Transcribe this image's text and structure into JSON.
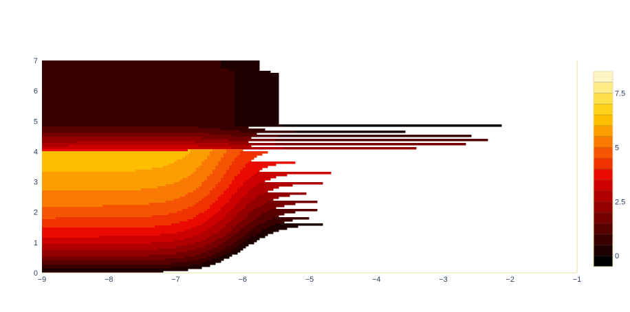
{
  "chart_data": {
    "type": "contour",
    "title": "",
    "xlabel": "",
    "ylabel": "",
    "xlim": [
      -9,
      -1
    ],
    "ylim": [
      0,
      7
    ],
    "x_ticks": [
      -9,
      -8,
      -7,
      -6,
      -5,
      -4,
      -3,
      -2,
      -1
    ],
    "x_tick_labels": [
      "−9",
      "−8",
      "−7",
      "−6",
      "−5",
      "−4",
      "−3",
      "−2",
      "−1"
    ],
    "y_ticks": [
      0,
      1,
      2,
      3,
      4,
      5,
      6,
      7
    ],
    "y_tick_labels": [
      "0",
      "1",
      "2",
      "3",
      "4",
      "5",
      "6",
      "7"
    ],
    "colorscale": "hot",
    "colorbar": {
      "range": [
        -0.5,
        8.5
      ],
      "levels": [
        -0.5,
        0,
        0.5,
        1,
        1.5,
        2,
        2.5,
        3,
        3.5,
        4,
        4.5,
        5,
        5.5,
        6,
        6.5,
        7,
        7.5,
        8,
        8.5
      ],
      "ticks": [
        0,
        2.5,
        5,
        7.5
      ],
      "tick_labels": [
        "0",
        "2.5",
        "5",
        "7.5"
      ]
    },
    "level_colors": [
      "#000000",
      "#1f0000",
      "#3a0000",
      "#570000",
      "#750000",
      "#920000",
      "#b00000",
      "#cd0000",
      "#ea0a00",
      "#f03200",
      "#f55500",
      "#f97a00",
      "#fc9d00",
      "#ffbf00",
      "#ffd21a",
      "#ffe04a",
      "#ffec86",
      "#fff5c4",
      "#fffbe6"
    ],
    "contour_line_color": "#5a4a30",
    "grid": false,
    "legend": "colorbar-right"
  }
}
